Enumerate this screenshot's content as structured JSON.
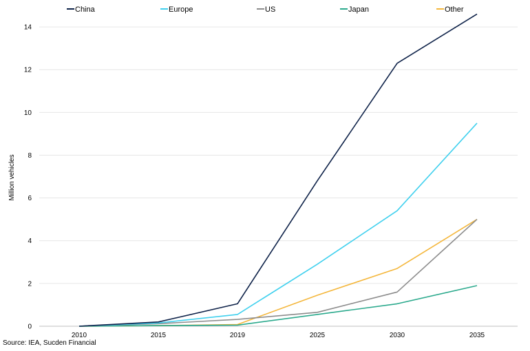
{
  "chart_data": {
    "type": "line",
    "x": [
      "2010",
      "2015",
      "2019",
      "2025",
      "2030",
      "2035"
    ],
    "ylabel": "Million vehicles",
    "ylim": [
      0,
      15
    ],
    "yticks": [
      0,
      2,
      4,
      6,
      8,
      10,
      12,
      14
    ],
    "grid": true,
    "legend": "top",
    "series": [
      {
        "name": "China",
        "color": "#0d2148",
        "values": [
          0,
          0.2,
          1.05,
          6.8,
          12.3,
          14.6
        ]
      },
      {
        "name": "Europe",
        "color": "#3fd0ee",
        "values": [
          0,
          0.15,
          0.55,
          2.9,
          5.4,
          9.5
        ]
      },
      {
        "name": "US",
        "color": "#8c8c8c",
        "values": [
          0,
          0.12,
          0.32,
          0.65,
          1.6,
          5.0
        ]
      },
      {
        "name": "Japan",
        "color": "#2aa98c",
        "values": [
          0,
          0.03,
          0.05,
          0.55,
          1.05,
          1.9
        ]
      },
      {
        "name": "Other",
        "color": "#f4b63a",
        "values": [
          0,
          0.03,
          0.08,
          1.45,
          2.7,
          5.0
        ]
      }
    ]
  },
  "source": "Source: IEA, Sucden Financial"
}
